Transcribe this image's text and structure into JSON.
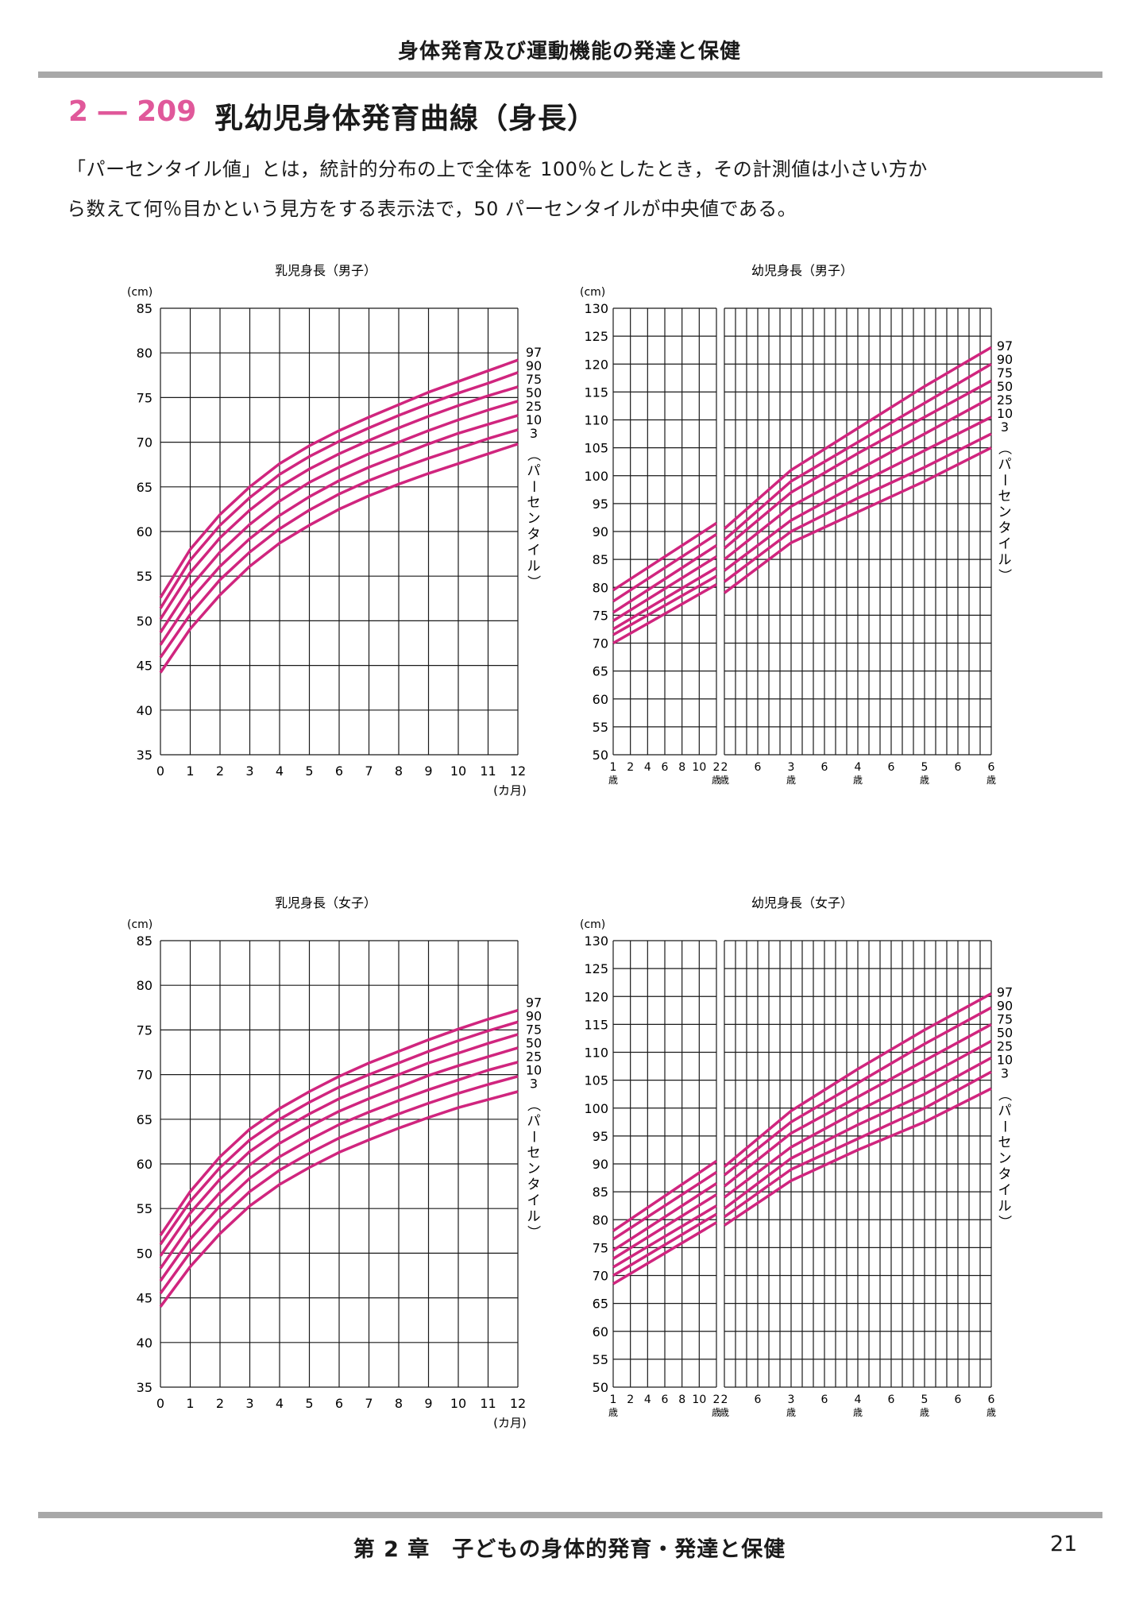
{
  "header": {
    "running_title": "身体発育及び運動機能の発達と保健",
    "section_number": "2 ― 209",
    "section_title": "乳幼児身体発育曲線（身長）"
  },
  "description": {
    "line1": "「パーセンタイル値」とは，統計的分布の上で全体を 100％としたとき，その計測値は小さい方か",
    "line2": "ら数えて何％目かという見方をする表示法で，50 パーセンタイルが中央値である。"
  },
  "footer": {
    "chapter": "第 2 章　子どもの身体的発育・発達と保健",
    "page": "21"
  },
  "colors": {
    "accent": "#e0589a",
    "curve": "#d0257e",
    "grid": "#1a1a1a",
    "rule": "#a8a8a8"
  },
  "chart_data": [
    {
      "type": "line",
      "title": "乳児身長（男子）",
      "unit_label": "(cm)",
      "x_unit_label": "(カ月)",
      "percentile_label": "（パーセンタイル）",
      "ylim": [
        35,
        85
      ],
      "y_ticks": [
        35,
        40,
        45,
        50,
        55,
        60,
        65,
        70,
        75,
        80,
        85
      ],
      "x_ticks": [
        0,
        1,
        2,
        3,
        4,
        5,
        6,
        7,
        8,
        9,
        10,
        11,
        12
      ],
      "grid": true,
      "x": [
        0,
        1,
        2,
        3,
        4,
        5,
        6,
        7,
        8,
        9,
        10,
        11,
        12
      ],
      "series": [
        {
          "name": "97",
          "values": [
            52.6,
            58.0,
            61.9,
            65.0,
            67.6,
            69.6,
            71.3,
            72.8,
            74.2,
            75.6,
            76.8,
            78.0,
            79.2
          ]
        },
        {
          "name": "90",
          "values": [
            51.4,
            56.8,
            60.7,
            63.8,
            66.4,
            68.4,
            70.1,
            71.6,
            73.0,
            74.3,
            75.5,
            76.6,
            77.8
          ]
        },
        {
          "name": "75",
          "values": [
            50.2,
            55.4,
            59.3,
            62.4,
            65.0,
            67.0,
            68.7,
            70.2,
            71.6,
            72.9,
            74.1,
            75.2,
            76.2
          ]
        },
        {
          "name": "50",
          "values": [
            48.7,
            53.8,
            57.7,
            60.8,
            63.4,
            65.5,
            67.2,
            68.7,
            70.0,
            71.3,
            72.5,
            73.6,
            74.6
          ]
        },
        {
          "name": "25",
          "values": [
            47.3,
            52.3,
            56.1,
            59.2,
            61.8,
            63.9,
            65.7,
            67.2,
            68.5,
            69.8,
            71.0,
            72.0,
            73.0
          ]
        },
        {
          "name": "10",
          "values": [
            45.9,
            50.7,
            54.6,
            57.7,
            60.3,
            62.4,
            64.2,
            65.7,
            67.0,
            68.2,
            69.3,
            70.4,
            71.4
          ]
        },
        {
          "name": "3",
          "values": [
            44.2,
            49.1,
            52.9,
            56.1,
            58.7,
            60.7,
            62.5,
            64.0,
            65.3,
            66.5,
            67.6,
            68.7,
            69.8
          ]
        }
      ]
    },
    {
      "type": "line",
      "title": "幼児身長（男子）",
      "unit_label": "(cm)",
      "percentile_label": "（パーセンタイル）",
      "ylim": [
        50,
        130
      ],
      "y_ticks": [
        50,
        55,
        60,
        65,
        70,
        75,
        80,
        85,
        90,
        95,
        100,
        105,
        110,
        115,
        120,
        125,
        130
      ],
      "grid": true,
      "panels": [
        {
          "x_range": [
            "1歳0カ月",
            "2歳0カ月"
          ],
          "x_ticks": [
            {
              "label": "1",
              "sub": "歳"
            },
            {
              "label": "2",
              "sub": ""
            },
            {
              "label": "4",
              "sub": ""
            },
            {
              "label": "6",
              "sub": ""
            },
            {
              "label": "8",
              "sub": ""
            },
            {
              "label": "10",
              "sub": ""
            },
            {
              "label": "2",
              "sub": "歳"
            }
          ],
          "x": [
            "1歳0カ月",
            "2歳0カ月"
          ],
          "series": [
            {
              "name": "97",
              "values": [
                79.5,
                91.5
              ]
            },
            {
              "name": "90",
              "values": [
                77.5,
                89.5
              ]
            },
            {
              "name": "75",
              "values": [
                75.5,
                87.5
              ]
            },
            {
              "name": "50",
              "values": [
                74.0,
                85.5
              ]
            },
            {
              "name": "25",
              "values": [
                72.5,
                83.5
              ]
            },
            {
              "name": "10",
              "values": [
                71.5,
                82.0
              ]
            },
            {
              "name": "3",
              "values": [
                70.0,
                80.5
              ]
            }
          ]
        },
        {
          "x_range": [
            "2歳0カ月",
            "6歳0カ月"
          ],
          "x_ticks": [
            {
              "label": "2",
              "sub": "歳"
            },
            {
              "label": "6",
              "sub": ""
            },
            {
              "label": "3",
              "sub": "歳"
            },
            {
              "label": "6",
              "sub": ""
            },
            {
              "label": "4",
              "sub": "歳"
            },
            {
              "label": "6",
              "sub": ""
            },
            {
              "label": "5",
              "sub": "歳"
            },
            {
              "label": "6",
              "sub": ""
            },
            {
              "label": "6",
              "sub": "歳"
            }
          ],
          "x": [
            "2歳0カ月",
            "3歳0カ月",
            "4歳0カ月",
            "5歳0カ月",
            "6歳0カ月"
          ],
          "series": [
            {
              "name": "97",
              "values": [
                90.5,
                101.0,
                108.5,
                116.0,
                123.0
              ]
            },
            {
              "name": "90",
              "values": [
                88.5,
                99.0,
                106.0,
                113.0,
                120.0
              ]
            },
            {
              "name": "75",
              "values": [
                87.0,
                97.0,
                104.0,
                110.5,
                117.0
              ]
            },
            {
              "name": "50",
              "values": [
                85.0,
                94.5,
                101.0,
                107.5,
                114.0
              ]
            },
            {
              "name": "25",
              "values": [
                83.0,
                92.0,
                98.5,
                104.5,
                110.5
              ]
            },
            {
              "name": "10",
              "values": [
                81.0,
                90.0,
                96.0,
                101.5,
                107.5
              ]
            },
            {
              "name": "3",
              "values": [
                79.0,
                88.0,
                93.5,
                99.0,
                105.0
              ]
            }
          ]
        }
      ]
    },
    {
      "type": "line",
      "title": "乳児身長（女子）",
      "unit_label": "(cm)",
      "x_unit_label": "(カ月)",
      "percentile_label": "（パーセンタイル）",
      "ylim": [
        35,
        85
      ],
      "y_ticks": [
        35,
        40,
        45,
        50,
        55,
        60,
        65,
        70,
        75,
        80,
        85
      ],
      "x_ticks": [
        0,
        1,
        2,
        3,
        4,
        5,
        6,
        7,
        8,
        9,
        10,
        11,
        12
      ],
      "grid": true,
      "x": [
        0,
        1,
        2,
        3,
        4,
        5,
        6,
        7,
        8,
        9,
        10,
        11,
        12
      ],
      "series": [
        {
          "name": "97",
          "values": [
            52.0,
            56.9,
            60.8,
            63.9,
            66.2,
            68.1,
            69.8,
            71.3,
            72.6,
            73.9,
            75.1,
            76.2,
            77.2
          ]
        },
        {
          "name": "90",
          "values": [
            51.0,
            55.8,
            59.6,
            62.7,
            65.0,
            66.9,
            68.6,
            70.0,
            71.3,
            72.6,
            73.8,
            74.9,
            75.9
          ]
        },
        {
          "name": "75",
          "values": [
            49.7,
            54.5,
            58.3,
            61.4,
            63.7,
            65.6,
            67.3,
            68.7,
            70.0,
            71.3,
            72.4,
            73.5,
            74.5
          ]
        },
        {
          "name": "50",
          "values": [
            48.3,
            53.1,
            56.8,
            59.9,
            62.3,
            64.2,
            65.9,
            67.3,
            68.6,
            69.9,
            71.0,
            72.0,
            73.0
          ]
        },
        {
          "name": "25",
          "values": [
            46.9,
            51.6,
            55.3,
            58.4,
            60.8,
            62.7,
            64.4,
            65.8,
            67.1,
            68.3,
            69.4,
            70.5,
            71.4
          ]
        },
        {
          "name": "10",
          "values": [
            45.5,
            50.1,
            53.8,
            56.9,
            59.3,
            61.2,
            62.9,
            64.3,
            65.6,
            66.8,
            67.9,
            68.9,
            69.8
          ]
        },
        {
          "name": "3",
          "values": [
            44.0,
            48.5,
            52.2,
            55.3,
            57.7,
            59.6,
            61.3,
            62.7,
            64.0,
            65.2,
            66.3,
            67.2,
            68.1
          ]
        }
      ]
    },
    {
      "type": "line",
      "title": "幼児身長（女子）",
      "unit_label": "(cm)",
      "percentile_label": "（パーセンタイル）",
      "ylim": [
        50,
        130
      ],
      "y_ticks": [
        50,
        55,
        60,
        65,
        70,
        75,
        80,
        85,
        90,
        95,
        100,
        105,
        110,
        115,
        120,
        125,
        130
      ],
      "grid": true,
      "panels": [
        {
          "x_range": [
            "1歳0カ月",
            "2歳0カ月"
          ],
          "x_ticks": [
            {
              "label": "1",
              "sub": "歳"
            },
            {
              "label": "2",
              "sub": ""
            },
            {
              "label": "4",
              "sub": ""
            },
            {
              "label": "6",
              "sub": ""
            },
            {
              "label": "8",
              "sub": ""
            },
            {
              "label": "10",
              "sub": ""
            },
            {
              "label": "2",
              "sub": "歳"
            }
          ],
          "x": [
            "1歳0カ月",
            "2歳0カ月"
          ],
          "series": [
            {
              "name": "97",
              "values": [
                78.0,
                90.5
              ]
            },
            {
              "name": "90",
              "values": [
                76.5,
                88.5
              ]
            },
            {
              "name": "75",
              "values": [
                74.5,
                86.5
              ]
            },
            {
              "name": "50",
              "values": [
                73.0,
                84.5
              ]
            },
            {
              "name": "25",
              "values": [
                71.5,
                82.5
              ]
            },
            {
              "name": "10",
              "values": [
                70.0,
                81.0
              ]
            },
            {
              "name": "3",
              "values": [
                68.5,
                79.5
              ]
            }
          ]
        },
        {
          "x_range": [
            "2歳0カ月",
            "6歳0カ月"
          ],
          "x_ticks": [
            {
              "label": "2",
              "sub": "歳"
            },
            {
              "label": "6",
              "sub": ""
            },
            {
              "label": "3",
              "sub": "歳"
            },
            {
              "label": "6",
              "sub": ""
            },
            {
              "label": "4",
              "sub": "歳"
            },
            {
              "label": "6",
              "sub": ""
            },
            {
              "label": "5",
              "sub": "歳"
            },
            {
              "label": "6",
              "sub": ""
            },
            {
              "label": "6",
              "sub": "歳"
            }
          ],
          "x": [
            "2歳0カ月",
            "3歳0カ月",
            "4歳0カ月",
            "5歳0カ月",
            "6歳0カ月"
          ],
          "series": [
            {
              "name": "97",
              "values": [
                89.5,
                99.5,
                107.0,
                114.0,
                120.5
              ]
            },
            {
              "name": "90",
              "values": [
                88.0,
                97.5,
                104.5,
                111.5,
                118.0
              ]
            },
            {
              "name": "75",
              "values": [
                86.0,
                95.5,
                102.0,
                108.5,
                115.0
              ]
            },
            {
              "name": "50",
              "values": [
                84.0,
                93.0,
                99.5,
                105.5,
                112.0
              ]
            },
            {
              "name": "25",
              "values": [
                82.0,
                91.0,
                97.0,
                102.5,
                109.0
              ]
            },
            {
              "name": "10",
              "values": [
                80.5,
                89.0,
                94.5,
                100.0,
                106.5
              ]
            },
            {
              "name": "3",
              "values": [
                79.0,
                87.0,
                92.5,
                97.5,
                103.5
              ]
            }
          ]
        }
      ]
    }
  ]
}
